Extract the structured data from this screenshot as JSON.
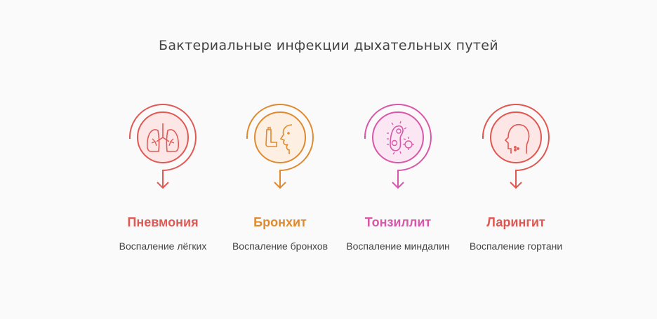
{
  "title": "Бактериальные инфекции дыхательных путей",
  "items": [
    {
      "name": "Пневмония",
      "desc": "Воспаление лёгких",
      "color": "#e05a55",
      "fill": "#fde6e6",
      "icon": "lungs-icon"
    },
    {
      "name": "Бронхит",
      "desc": "Воспаление бронхов",
      "color": "#e08a30",
      "fill": "#fdf0e2",
      "icon": "inhaler-face-icon"
    },
    {
      "name": "Тонзиллит",
      "desc": "Воспаление миндалин",
      "color": "#d957a8",
      "fill": "#fbe6f4",
      "icon": "bacteria-icon"
    },
    {
      "name": "Ларингит",
      "desc": "Воспаление гортани",
      "color": "#e05650",
      "fill": "#fde6e6",
      "icon": "head-throat-icon"
    }
  ]
}
